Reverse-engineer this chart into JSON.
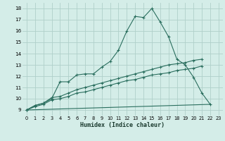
{
  "background_color": "#d4ede8",
  "grid_color": "#b0d0ca",
  "line_color": "#2a6e5e",
  "xlabel": "Humidex (Indice chaleur)",
  "xlim": [
    -0.5,
    23.5
  ],
  "ylim": [
    8.5,
    18.5
  ],
  "xticks": [
    0,
    1,
    2,
    3,
    4,
    5,
    6,
    7,
    8,
    9,
    10,
    11,
    12,
    13,
    14,
    15,
    16,
    17,
    18,
    19,
    20,
    21,
    22,
    23
  ],
  "yticks": [
    9,
    10,
    11,
    12,
    13,
    14,
    15,
    16,
    17,
    18
  ],
  "series": [
    {
      "x": [
        0,
        1,
        2,
        3,
        4,
        5,
        6,
        7,
        8,
        9,
        10,
        11,
        12,
        13,
        14,
        15,
        16,
        17,
        18,
        19,
        20,
        21,
        22
      ],
      "y": [
        9.0,
        9.4,
        9.6,
        10.0,
        11.5,
        11.5,
        12.1,
        12.2,
        12.2,
        12.8,
        13.3,
        14.3,
        16.0,
        17.3,
        17.2,
        18.0,
        16.8,
        15.5,
        13.5,
        13.0,
        11.9,
        10.5,
        9.5
      ],
      "marker": true
    },
    {
      "x": [
        0,
        1,
        2,
        3,
        4,
        5,
        6,
        7,
        8,
        9,
        10,
        11,
        12,
        13,
        14,
        15,
        16,
        17,
        18,
        19,
        20,
        21
      ],
      "y": [
        9.0,
        9.4,
        9.6,
        10.1,
        10.2,
        10.5,
        10.8,
        11.0,
        11.2,
        11.4,
        11.6,
        11.8,
        12.0,
        12.2,
        12.4,
        12.6,
        12.8,
        13.0,
        13.1,
        13.2,
        13.4,
        13.5
      ],
      "marker": true
    },
    {
      "x": [
        0,
        1,
        2,
        3,
        4,
        5,
        6,
        7,
        8,
        9,
        10,
        11,
        12,
        13,
        14,
        15,
        16,
        17,
        18,
        19,
        20,
        21
      ],
      "y": [
        9.0,
        9.3,
        9.5,
        9.9,
        10.0,
        10.2,
        10.5,
        10.6,
        10.8,
        11.0,
        11.2,
        11.4,
        11.6,
        11.7,
        11.9,
        12.1,
        12.2,
        12.3,
        12.5,
        12.6,
        12.7,
        12.9
      ],
      "marker": true
    },
    {
      "x": [
        0,
        22
      ],
      "y": [
        9.0,
        9.5
      ],
      "marker": false
    }
  ]
}
